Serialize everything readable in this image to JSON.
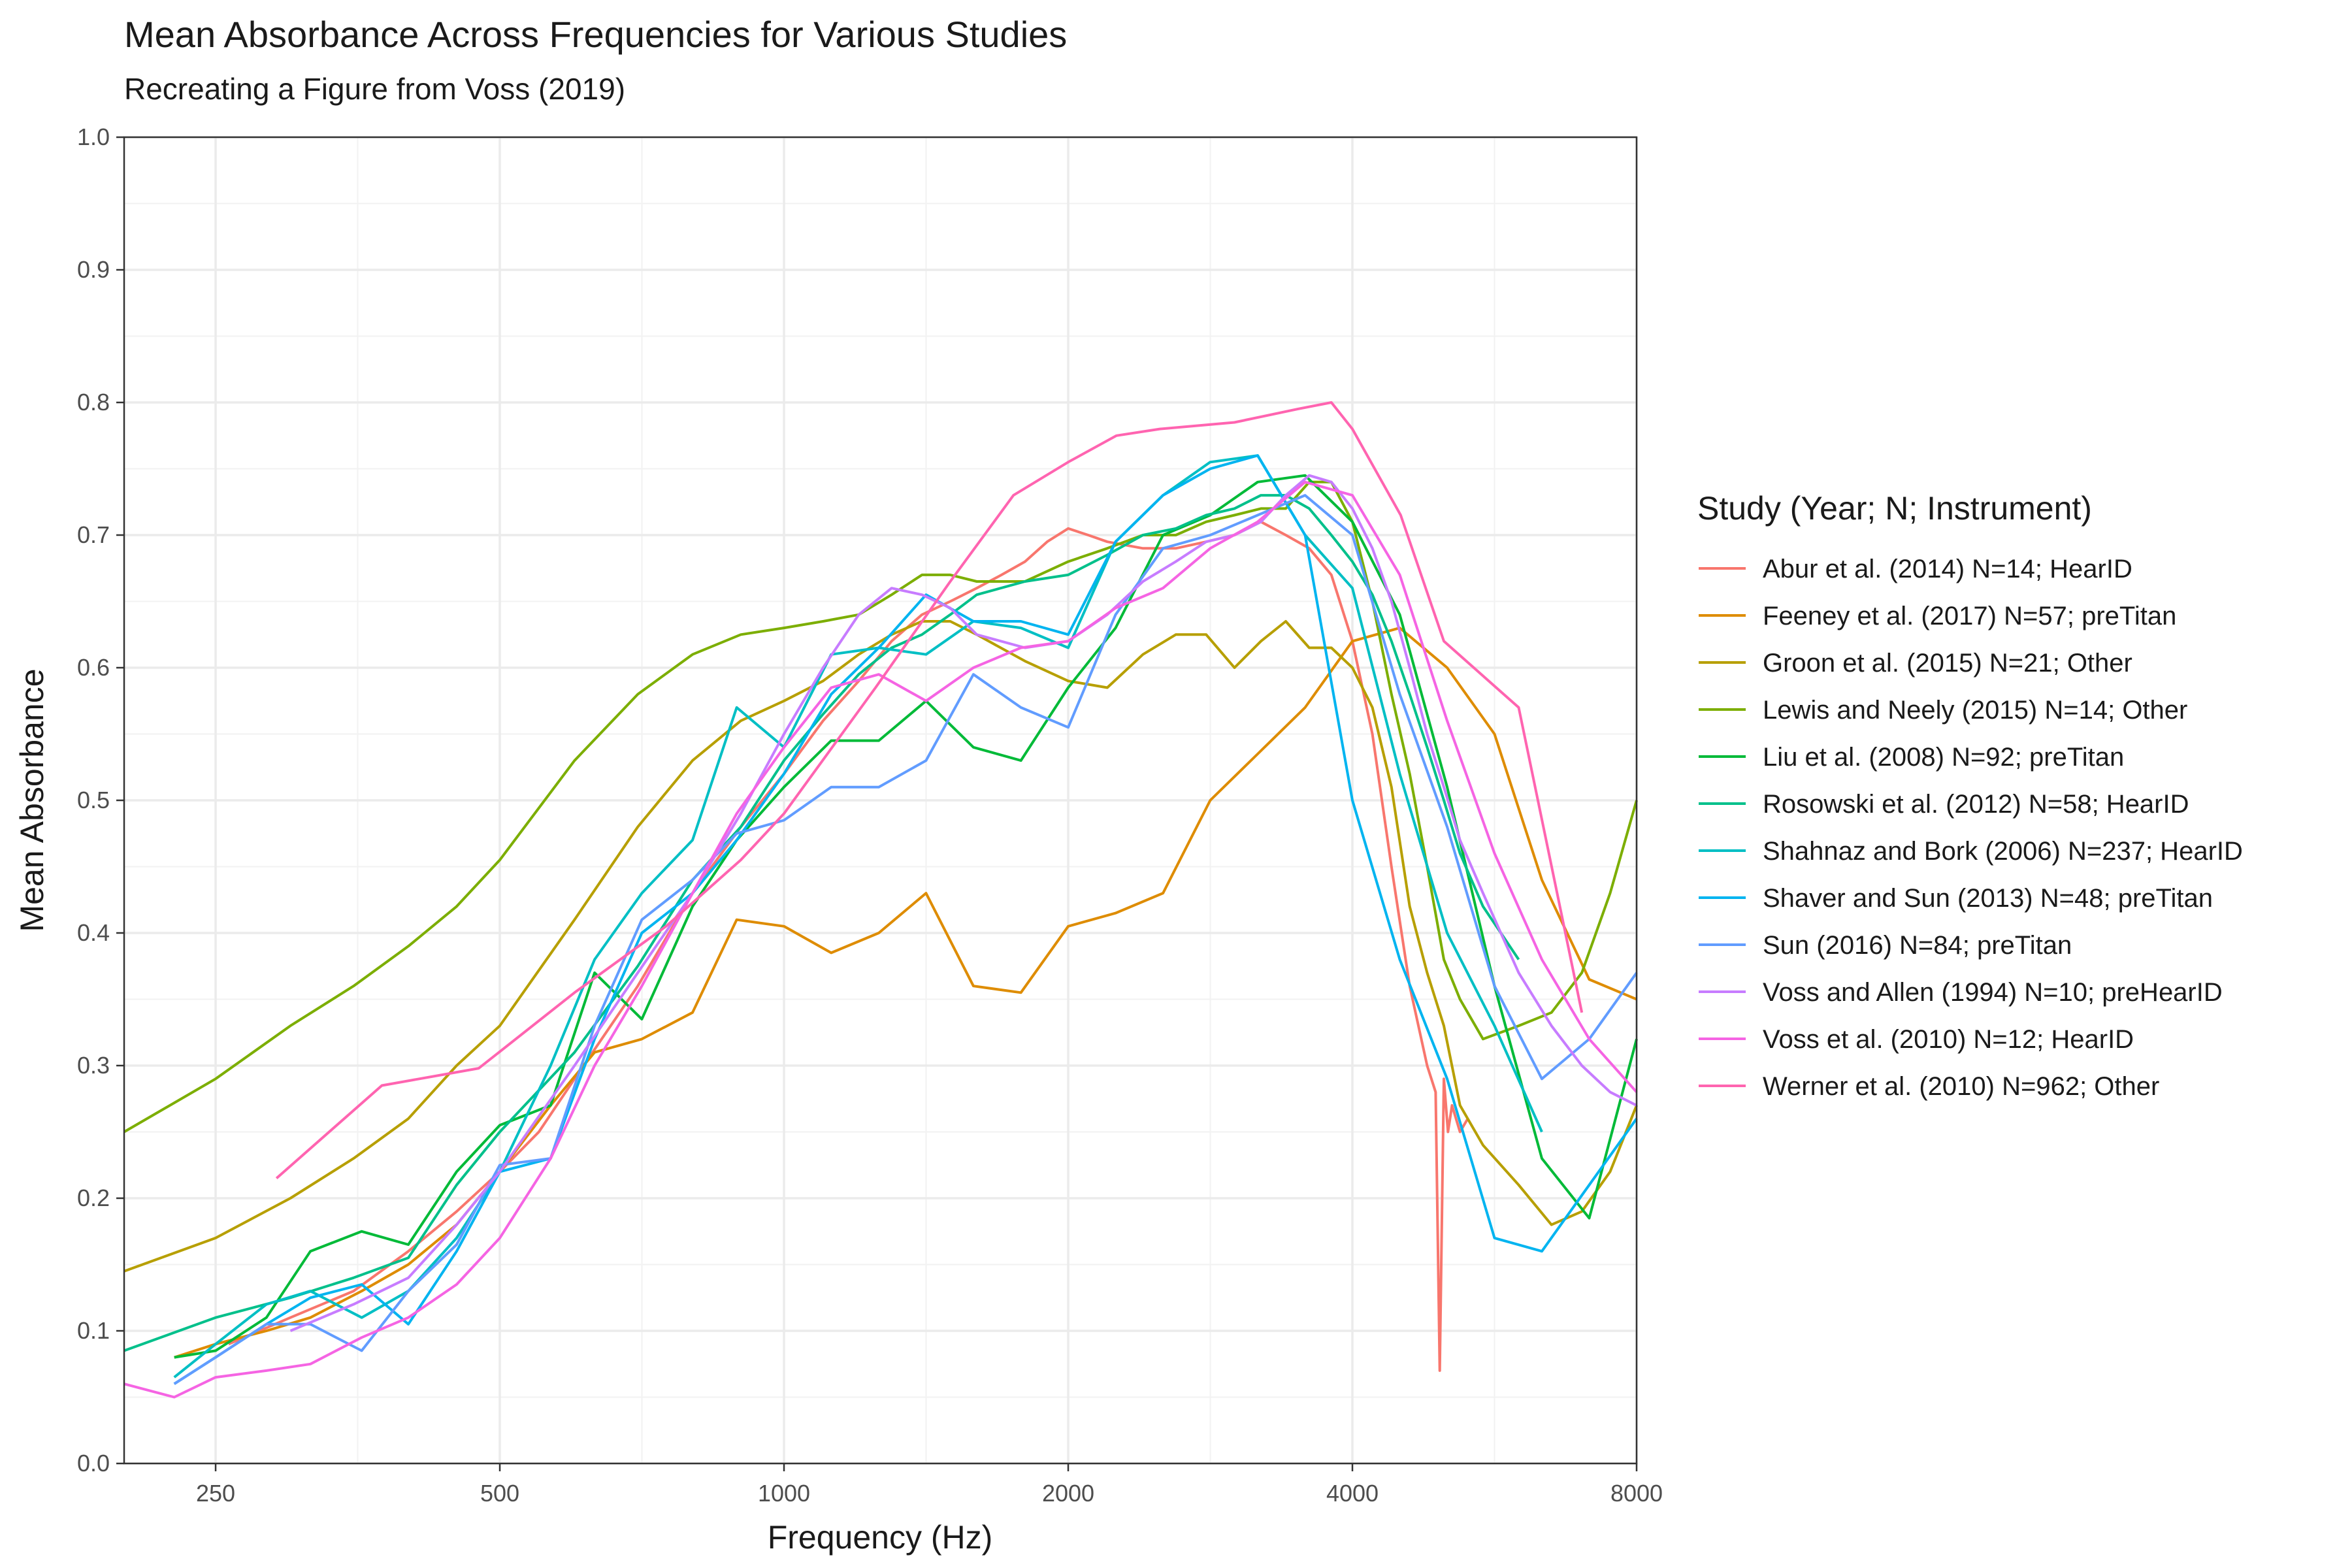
{
  "chart_data": {
    "type": "line",
    "title": "Mean Absorbance Across Frequencies for Various Studies",
    "subtitle": "Recreating a Figure from Voss (2019)",
    "xlabel": "Frequency (Hz)",
    "ylabel": "Mean Absorbance",
    "x_scale": "log",
    "xlim": [
      200,
      8000
    ],
    "ylim": [
      0,
      1
    ],
    "x_ticks": [
      250,
      500,
      1000,
      2000,
      4000,
      8000
    ],
    "x_tick_labels": [
      "250",
      "500",
      "1000",
      "2000",
      "4000",
      "8000"
    ],
    "y_ticks": [
      0,
      0.1,
      0.2,
      0.3,
      0.4,
      0.5,
      0.6,
      0.7,
      0.8,
      0.9,
      1.0
    ],
    "y_tick_labels": [
      "0.0",
      "0.1",
      "0.2",
      "0.3",
      "0.4",
      "0.5",
      "0.6",
      "0.7",
      "0.8",
      "0.9",
      "1.0"
    ],
    "grid": true,
    "legend_title": "Study (Year; N; Instrument)",
    "legend_position": "right",
    "series": [
      {
        "name": "Abur et al. (2014) N=14; HearID",
        "color": "#F8766D",
        "x": [
          258,
          300,
          350,
          400,
          450,
          500,
          550,
          600,
          700,
          800,
          900,
          1000,
          1100,
          1200,
          1300,
          1400,
          1500,
          1600,
          1700,
          1800,
          1900,
          2000,
          2100,
          2200,
          2400,
          2600,
          2800,
          3000,
          3200,
          3400,
          3600,
          3800,
          4000,
          4200,
          4400,
          4600,
          4800,
          4900,
          4950,
          5000,
          5050,
          5100,
          5200,
          5300
        ],
        "y": [
          0.09,
          0.11,
          0.13,
          0.16,
          0.19,
          0.22,
          0.25,
          0.29,
          0.36,
          0.43,
          0.48,
          0.52,
          0.56,
          0.59,
          0.62,
          0.64,
          0.65,
          0.66,
          0.67,
          0.68,
          0.695,
          0.705,
          0.7,
          0.695,
          0.69,
          0.69,
          0.695,
          0.7,
          0.71,
          0.7,
          0.69,
          0.67,
          0.62,
          0.55,
          0.45,
          0.36,
          0.3,
          0.28,
          0.07,
          0.29,
          0.25,
          0.27,
          0.25,
          0.26
        ]
      },
      {
        "name": "Feeney et al. (2017) N=57; preTitan",
        "color": "#DE8C00",
        "x": [
          226,
          250,
          283,
          315,
          357,
          400,
          450,
          500,
          566,
          630,
          707,
          800,
          891,
          1000,
          1122,
          1260,
          1414,
          1587,
          1782,
          2000,
          2245,
          2520,
          2828,
          3175,
          3564,
          4000,
          4490,
          5040,
          5657,
          6350,
          7127,
          8000
        ],
        "y": [
          0.08,
          0.09,
          0.1,
          0.11,
          0.13,
          0.15,
          0.18,
          0.22,
          0.27,
          0.31,
          0.32,
          0.34,
          0.41,
          0.405,
          0.385,
          0.4,
          0.43,
          0.36,
          0.355,
          0.405,
          0.415,
          0.43,
          0.5,
          0.535,
          0.57,
          0.62,
          0.63,
          0.6,
          0.55,
          0.44,
          0.365,
          0.35
        ]
      },
      {
        "name": "Groon et al. (2015) N=21; Other",
        "color": "#B79F00",
        "x": [
          200,
          250,
          300,
          350,
          400,
          450,
          500,
          600,
          700,
          800,
          900,
          1000,
          1100,
          1200,
          1300,
          1400,
          1500,
          1600,
          1800,
          2000,
          2200,
          2400,
          2600,
          2800,
          3000,
          3200,
          3400,
          3600,
          3800,
          4000,
          4200,
          4400,
          4600,
          4800,
          5000,
          5200,
          5500,
          6000,
          6500,
          7000,
          7500,
          8000
        ],
        "y": [
          0.145,
          0.17,
          0.2,
          0.23,
          0.26,
          0.3,
          0.33,
          0.41,
          0.48,
          0.53,
          0.56,
          0.575,
          0.59,
          0.61,
          0.625,
          0.635,
          0.635,
          0.625,
          0.605,
          0.59,
          0.585,
          0.61,
          0.625,
          0.625,
          0.6,
          0.62,
          0.635,
          0.615,
          0.615,
          0.6,
          0.57,
          0.51,
          0.42,
          0.37,
          0.33,
          0.27,
          0.24,
          0.21,
          0.18,
          0.19,
          0.22,
          0.27
        ]
      },
      {
        "name": "Lewis and Neely (2015) N=14; Other",
        "color": "#7CAE00",
        "x": [
          200,
          250,
          300,
          350,
          400,
          450,
          500,
          600,
          700,
          800,
          900,
          1000,
          1100,
          1200,
          1300,
          1400,
          1500,
          1600,
          1800,
          2000,
          2200,
          2400,
          2600,
          2800,
          3000,
          3200,
          3400,
          3600,
          3800,
          4000,
          4200,
          4400,
          4600,
          4800,
          5000,
          5200,
          5500,
          6000,
          6500,
          7000,
          7500,
          8000
        ],
        "y": [
          0.25,
          0.29,
          0.33,
          0.36,
          0.39,
          0.42,
          0.455,
          0.53,
          0.58,
          0.61,
          0.625,
          0.63,
          0.635,
          0.64,
          0.655,
          0.67,
          0.67,
          0.665,
          0.665,
          0.68,
          0.69,
          0.7,
          0.7,
          0.71,
          0.715,
          0.72,
          0.72,
          0.74,
          0.74,
          0.71,
          0.65,
          0.58,
          0.52,
          0.45,
          0.38,
          0.35,
          0.32,
          0.33,
          0.34,
          0.37,
          0.43,
          0.5
        ]
      },
      {
        "name": "Liu et al. (2008) N=92; preTitan",
        "color": "#00BA38",
        "x": [
          226,
          250,
          283,
          315,
          357,
          400,
          450,
          500,
          566,
          630,
          707,
          800,
          891,
          1000,
          1122,
          1260,
          1414,
          1587,
          1782,
          2000,
          2245,
          2520,
          2828,
          3175,
          3564,
          4000,
          4490,
          5040,
          5657,
          6350,
          7127,
          8000
        ],
        "y": [
          0.08,
          0.085,
          0.11,
          0.16,
          0.175,
          0.165,
          0.22,
          0.255,
          0.27,
          0.37,
          0.335,
          0.42,
          0.47,
          0.51,
          0.545,
          0.545,
          0.575,
          0.54,
          0.53,
          0.585,
          0.63,
          0.7,
          0.715,
          0.74,
          0.745,
          0.71,
          0.64,
          0.51,
          0.36,
          0.23,
          0.185,
          0.32
        ]
      },
      {
        "name": "Rosowski et al. (2012) N=58; HearID",
        "color": "#00C08B",
        "x": [
          200,
          250,
          300,
          350,
          400,
          450,
          500,
          600,
          700,
          800,
          900,
          1000,
          1100,
          1200,
          1300,
          1400,
          1500,
          1600,
          1800,
          2000,
          2200,
          2400,
          2600,
          2800,
          3000,
          3200,
          3400,
          3600,
          3800,
          4000,
          4200,
          4400,
          4600,
          4800,
          5000,
          5200,
          5500,
          6000
        ],
        "y": [
          0.085,
          0.11,
          0.125,
          0.14,
          0.155,
          0.21,
          0.25,
          0.31,
          0.375,
          0.44,
          0.48,
          0.53,
          0.565,
          0.595,
          0.615,
          0.625,
          0.64,
          0.655,
          0.665,
          0.67,
          0.685,
          0.7,
          0.705,
          0.715,
          0.72,
          0.73,
          0.73,
          0.72,
          0.7,
          0.68,
          0.655,
          0.62,
          0.58,
          0.54,
          0.5,
          0.46,
          0.42,
          0.38
        ]
      },
      {
        "name": "Shahnaz and Bork (2006) N=237; HearID",
        "color": "#00BFC4",
        "x": [
          226,
          250,
          283,
          315,
          357,
          400,
          450,
          500,
          566,
          630,
          707,
          800,
          891,
          1000,
          1122,
          1260,
          1414,
          1587,
          1782,
          2000,
          2245,
          2520,
          2828,
          3175,
          3564,
          4000,
          4490,
          5040,
          5657,
          6350
        ],
        "y": [
          0.065,
          0.09,
          0.12,
          0.13,
          0.11,
          0.13,
          0.17,
          0.22,
          0.3,
          0.38,
          0.43,
          0.47,
          0.57,
          0.54,
          0.61,
          0.615,
          0.61,
          0.635,
          0.63,
          0.615,
          0.695,
          0.73,
          0.755,
          0.76,
          0.7,
          0.66,
          0.52,
          0.4,
          0.33,
          0.25
        ]
      },
      {
        "name": "Shaver and Sun (2013) N=48; preTitan",
        "color": "#00B4F0",
        "x": [
          226,
          250,
          283,
          315,
          357,
          400,
          450,
          500,
          566,
          630,
          707,
          800,
          891,
          1000,
          1122,
          1260,
          1414,
          1587,
          1782,
          2000,
          2245,
          2520,
          2828,
          3175,
          3564,
          4000,
          4490,
          5040,
          5657,
          6350,
          7127,
          8000
        ],
        "y": [
          0.06,
          0.08,
          0.105,
          0.125,
          0.135,
          0.105,
          0.16,
          0.22,
          0.23,
          0.32,
          0.4,
          0.43,
          0.47,
          0.52,
          0.58,
          0.615,
          0.655,
          0.635,
          0.635,
          0.625,
          0.695,
          0.73,
          0.75,
          0.76,
          0.7,
          0.5,
          0.38,
          0.29,
          0.17,
          0.16,
          0.21,
          0.26
        ]
      },
      {
        "name": "Sun (2016) N=84; preTitan",
        "color": "#619CFF",
        "x": [
          226,
          250,
          283,
          315,
          357,
          400,
          450,
          500,
          566,
          630,
          707,
          800,
          891,
          1000,
          1122,
          1260,
          1414,
          1587,
          1782,
          2000,
          2245,
          2520,
          2828,
          3175,
          3564,
          4000,
          4490,
          5040,
          5657,
          6350,
          7127,
          8000
        ],
        "y": [
          0.06,
          0.08,
          0.105,
          0.105,
          0.085,
          0.13,
          0.165,
          0.225,
          0.23,
          0.33,
          0.41,
          0.44,
          0.475,
          0.485,
          0.51,
          0.51,
          0.53,
          0.595,
          0.57,
          0.555,
          0.64,
          0.69,
          0.7,
          0.715,
          0.73,
          0.7,
          0.58,
          0.48,
          0.36,
          0.29,
          0.32,
          0.37
        ]
      },
      {
        "name": "Voss and Allen (1994) N=10; preHearID",
        "color": "#C77CFF",
        "x": [
          300,
          350,
          400,
          450,
          500,
          600,
          700,
          800,
          900,
          1000,
          1100,
          1200,
          1300,
          1400,
          1500,
          1600,
          1800,
          2000,
          2200,
          2400,
          2600,
          2800,
          3000,
          3200,
          3400,
          3600,
          3800,
          4000,
          4200,
          4400,
          4600,
          4800,
          5000,
          5200,
          5500,
          6000,
          6500,
          7000,
          7500,
          8000
        ],
        "y": [
          0.1,
          0.12,
          0.14,
          0.18,
          0.22,
          0.3,
          0.37,
          0.43,
          0.49,
          0.55,
          0.6,
          0.64,
          0.66,
          0.655,
          0.645,
          0.625,
          0.615,
          0.62,
          0.64,
          0.665,
          0.68,
          0.695,
          0.7,
          0.71,
          0.73,
          0.745,
          0.74,
          0.72,
          0.69,
          0.65,
          0.6,
          0.55,
          0.51,
          0.47,
          0.43,
          0.37,
          0.33,
          0.3,
          0.28,
          0.27
        ]
      },
      {
        "name": "Voss et al. (2010) N=12; HearID",
        "color": "#F564E3",
        "x": [
          200,
          226,
          250,
          283,
          315,
          357,
          400,
          450,
          500,
          566,
          630,
          707,
          800,
          891,
          1000,
          1122,
          1260,
          1414,
          1587,
          1782,
          2000,
          2245,
          2520,
          2828,
          3175,
          3564,
          4000,
          4490,
          5040,
          5657,
          6350,
          7127,
          8000
        ],
        "y": [
          0.06,
          0.05,
          0.065,
          0.07,
          0.075,
          0.095,
          0.11,
          0.135,
          0.17,
          0.23,
          0.3,
          0.36,
          0.43,
          0.49,
          0.54,
          0.585,
          0.595,
          0.575,
          0.6,
          0.615,
          0.62,
          0.645,
          0.66,
          0.69,
          0.71,
          0.74,
          0.73,
          0.67,
          0.56,
          0.46,
          0.38,
          0.32,
          0.28
        ]
      },
      {
        "name": "Werner et al. (2010) N=962; Other",
        "color": "#FF64B0",
        "x": [
          290,
          375,
          475,
          600,
          750,
          900,
          1000,
          1250,
          1500,
          1750,
          2000,
          2250,
          2500,
          3000,
          3500,
          3800,
          4000,
          4500,
          5000,
          6000,
          7000
        ],
        "y": [
          0.215,
          0.285,
          0.298,
          0.355,
          0.405,
          0.455,
          0.49,
          0.585,
          0.665,
          0.73,
          0.755,
          0.775,
          0.78,
          0.785,
          0.795,
          0.8,
          0.78,
          0.715,
          0.62,
          0.57,
          0.34
        ]
      }
    ]
  }
}
